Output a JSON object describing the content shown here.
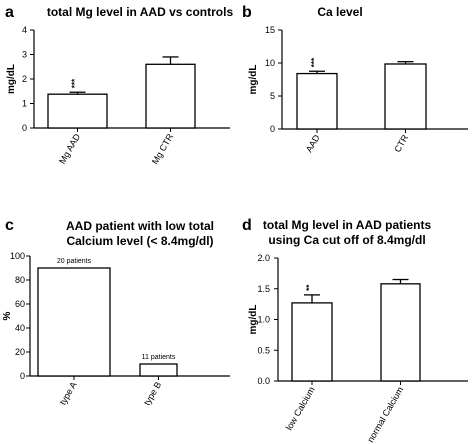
{
  "chart_data": [
    {
      "type": "bar",
      "panel_letter": "a",
      "title": "total Mg level in AAD vs controls",
      "ylabel": "mg/dL",
      "ylim": [
        0,
        4
      ],
      "yticks": [
        0,
        1,
        2,
        3,
        4
      ],
      "categories": [
        "Mg AAD",
        "Mg CTR"
      ],
      "values": [
        1.38,
        2.6
      ],
      "errors": [
        0.08,
        0.3
      ],
      "annotations": [
        "***",
        ""
      ]
    },
    {
      "type": "bar",
      "panel_letter": "b",
      "title": "Ca level",
      "ylabel": "mg/dL",
      "ylim": [
        0,
        15
      ],
      "yticks": [
        0,
        5,
        10,
        15
      ],
      "categories": [
        "AAD",
        "CTR"
      ],
      "values": [
        8.4,
        9.85
      ],
      "errors": [
        0.35,
        0.35
      ],
      "annotations": [
        "***",
        ""
      ]
    },
    {
      "type": "bar",
      "panel_letter": "c",
      "title": "AAD patient with low total\nCalcium level (< 8.4mg/dl)",
      "ylabel": "%",
      "ylim": [
        0,
        100
      ],
      "yticks": [
        0,
        20,
        40,
        60,
        80,
        100
      ],
      "categories": [
        "type A",
        "type B"
      ],
      "values": [
        90,
        10
      ],
      "errors": [
        0,
        0
      ],
      "annotations": [
        "20 patients",
        "11 patients"
      ]
    },
    {
      "type": "bar",
      "panel_letter": "d",
      "title": "total Mg level in AAD patients\nusing Ca cut off of 8.4mg/dl",
      "ylabel": "mg/dL",
      "ylim": [
        0,
        2
      ],
      "yticks": [
        "0.0",
        "0.5",
        "1.0",
        "1.5",
        "2.0"
      ],
      "categories": [
        "low Calcium",
        "normal Calcium"
      ],
      "values": [
        1.27,
        1.58
      ],
      "errors": [
        0.13,
        0.07
      ],
      "annotations": [
        "**",
        ""
      ]
    }
  ]
}
